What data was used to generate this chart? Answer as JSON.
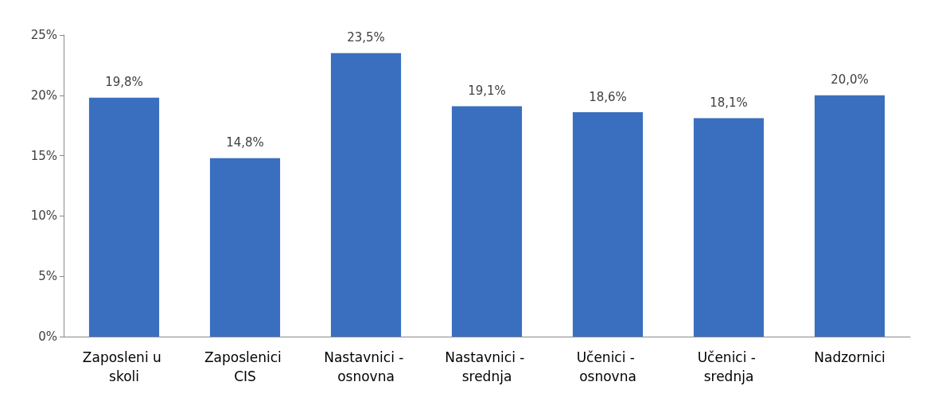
{
  "chart_data": {
    "type": "bar",
    "categories": [
      "Zaposleni u skoli",
      "Zaposlenici CIS",
      "Nastavnici - osnovna",
      "Nastavnici - srednja",
      "Učenici - osnovna",
      "Učenici - srednja",
      "Nadzornici"
    ],
    "values": [
      19.8,
      14.8,
      23.5,
      19.1,
      18.6,
      18.1,
      20.0
    ],
    "value_labels": [
      "19,8%",
      "14,8%",
      "23,5%",
      "19,1%",
      "18,6%",
      "18,1%",
      "20,0%"
    ],
    "color": "#3a6fc0",
    "ylim": [
      0,
      25
    ],
    "yticks": [
      {
        "value": 0,
        "label": "0%"
      },
      {
        "value": 5,
        "label": "5%"
      },
      {
        "value": 10,
        "label": "10%"
      },
      {
        "value": 15,
        "label": "15%"
      },
      {
        "value": 20,
        "label": "20%"
      },
      {
        "value": 25,
        "label": "25%"
      }
    ],
    "grid": false
  }
}
